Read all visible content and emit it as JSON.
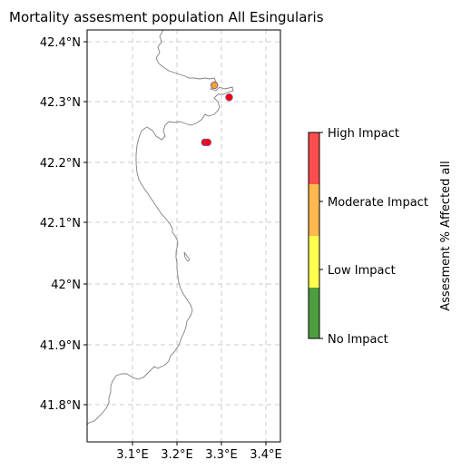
{
  "title": "Mortality assesment population All Esingularis",
  "map": {
    "x_ticks": [
      "3.1°E",
      "3.2°E",
      "3.3°E",
      "3.4°E"
    ],
    "y_ticks": [
      "42.4°N",
      "42.3°N",
      "42.2°N",
      "42.1°N",
      "42°N",
      "41.9°N",
      "41.8°N"
    ],
    "grid": "dashed"
  },
  "chart_data": {
    "type": "scatter",
    "title": "Mortality assesment population All Esingularis",
    "xlim": [
      3.0,
      3.43
    ],
    "ylim": [
      41.74,
      42.425
    ],
    "x_ticks": [
      3.1,
      3.2,
      3.3,
      3.4
    ],
    "y_ticks": [
      42.4,
      42.3,
      42.2,
      42.1,
      42.0,
      41.9,
      41.8
    ],
    "points": [
      {
        "lon": 3.283,
        "lat": 42.333,
        "impact": "Moderate Impact",
        "color": "#f5a623"
      },
      {
        "lon": 3.316,
        "lat": 42.313,
        "impact": "High Impact",
        "color": "#ff0000"
      },
      {
        "lon": 3.262,
        "lat": 42.238,
        "impact": "High Impact",
        "color": "#ff0000"
      },
      {
        "lon": 3.268,
        "lat": 42.238,
        "impact": "High Impact",
        "color": "#ff0000"
      }
    ]
  },
  "colorbar": {
    "label": "Assesment % Affected all",
    "ticks": [
      "High Impact",
      "Moderate Impact",
      "Low Impact",
      "No Impact"
    ],
    "bands": [
      {
        "name": "High Impact",
        "color": "#ff4d4d"
      },
      {
        "name": "Moderate Impact",
        "color": "#ffb84d"
      },
      {
        "name": "Low Impact",
        "color": "#ffff4d"
      },
      {
        "name": "No Impact",
        "color": "#4d9e3f"
      }
    ]
  }
}
